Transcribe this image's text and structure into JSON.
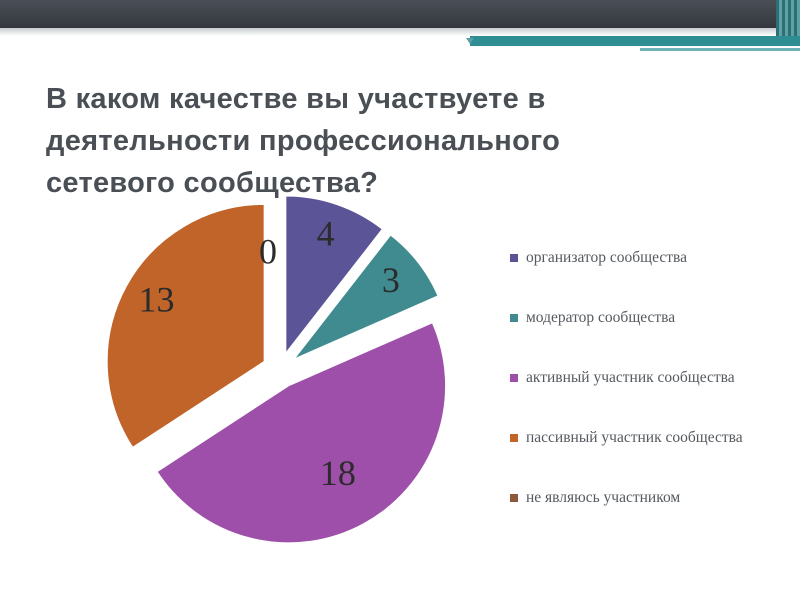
{
  "slide": {
    "title": "В каком качестве вы участвуете в деятельности профессионального сетевого сообщества?"
  },
  "chart_data": {
    "type": "pie",
    "exploded": true,
    "categories": [
      "организатор сообщества",
      " модератор сообщества",
      "активный участник сообщества",
      "пассивный участник сообщества",
      "не являюсь участником"
    ],
    "values": [
      4,
      3,
      18,
      13,
      0
    ],
    "data_labels": [
      "4",
      "3",
      "18",
      "13",
      "0"
    ],
    "colors": [
      "#5b5496",
      "#3f8b8f",
      "#9e4fa9",
      "#c0642a",
      "#8b5a3c"
    ],
    "legend_position": "right"
  }
}
